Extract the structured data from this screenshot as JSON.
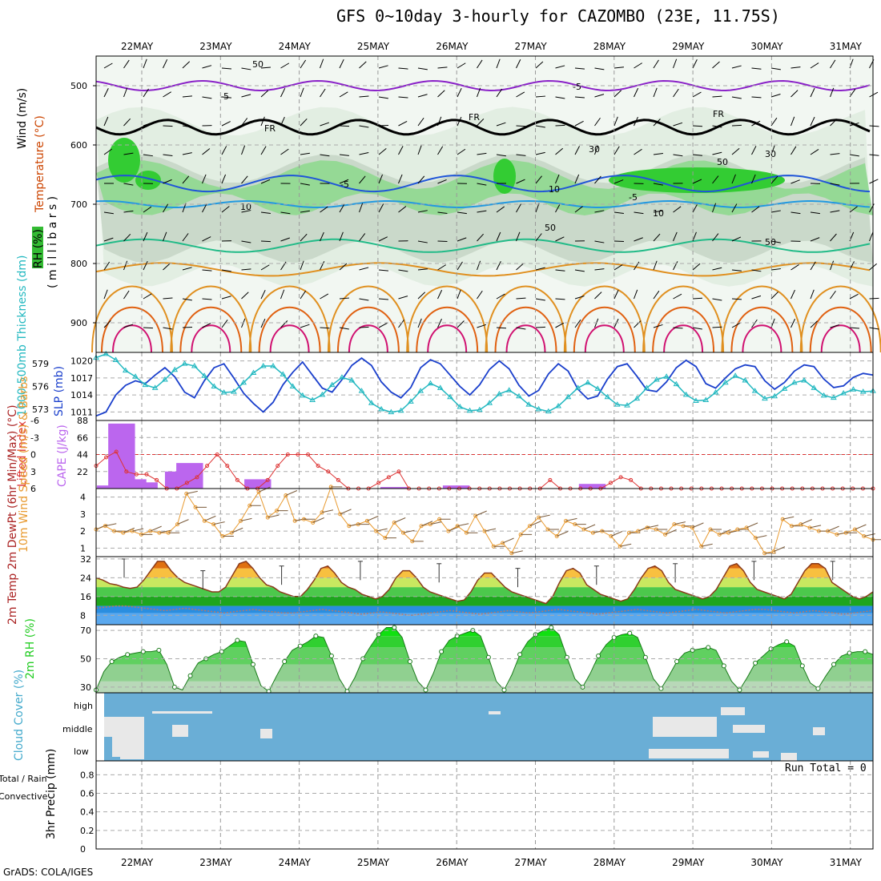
{
  "title": "GFS 0~10day 3-hourly for CAZOMBO (23E, 11.75S)",
  "credit": "GrADS: COLA/IGES",
  "run_total": "Run Total = 0",
  "colors": {
    "rh_green": "#33cc33",
    "temp_purple": "#8a22c8",
    "temp_blue": "#1f55d8",
    "temp_lightblue": "#2299e0",
    "temp_teal": "#22bb88",
    "temp_orange": "#e09020",
    "temp_darkorange": "#e06010",
    "temp_magenta": "#d01070",
    "slp_blue": "#1a3fcc",
    "thick_cyan": "#22b8c0",
    "cape_purple": "#bb66ee",
    "li_red": "#dd3333",
    "wind_orange": "#e89a30",
    "cloud_blue": "#6aaed6",
    "rh2m_green": "#22cc22"
  },
  "chart_data": [
    {
      "type": "heatmap",
      "name": "upper-air cross-section",
      "x_dates": [
        "22MAY",
        "23MAY",
        "24MAY",
        "25MAY",
        "26MAY",
        "27MAY",
        "28MAY",
        "29MAY",
        "30MAY",
        "31MAY"
      ],
      "y_ticks": [
        500,
        600,
        700,
        800,
        900
      ],
      "ylim": [
        950,
        450
      ],
      "contour_labels": [
        "-5",
        "-5",
        "FR",
        "FR",
        "FR",
        "-5",
        "-5",
        "10",
        "10",
        "50",
        "10",
        "30",
        "30",
        "50",
        "50",
        "50"
      ],
      "labels": {
        "wind": "Wind (m/s)",
        "temperature": "Temperature (°C)",
        "rh": "RH (%)",
        "pressure": "( m i l l i b a r s )"
      }
    },
    {
      "type": "line",
      "name": "sea level pressure and thickness",
      "left_axis_label": "1000-500mb Thickness (dm)",
      "left_ticks": [
        573,
        576,
        579
      ],
      "left_lim": [
        571.5,
        580.5
      ],
      "right_axis_label": "SLP (mb)",
      "right_ticks": [
        1011,
        1014,
        1017,
        1020
      ],
      "right_lim": [
        1009.5,
        1021.5
      ],
      "series": [
        {
          "name": "SLP (mb)",
          "axis": "right",
          "values": [
            1010.3,
            1011,
            1014,
            1015.7,
            1016.5,
            1016,
            1017.5,
            1018.8,
            1017.2,
            1014.5,
            1013.5,
            1016.5,
            1018.8,
            1019.5,
            1017,
            1014.3,
            1012.5,
            1011,
            1012.7,
            1015.8,
            1018,
            1019.8,
            1017.5,
            1015.2,
            1014.5,
            1016.7,
            1019.2,
            1020.5,
            1019.2,
            1016.3,
            1014.5,
            1013.5,
            1015.3,
            1018.8,
            1020.2,
            1019.5,
            1017.5,
            1015.5,
            1014,
            1015.8,
            1018.5,
            1020,
            1018.6,
            1015.7,
            1013.8,
            1014.8,
            1017.7,
            1019.5,
            1018.2,
            1015,
            1013.3,
            1013.8,
            1016.8,
            1019,
            1019.5,
            1017.3,
            1014.9,
            1014.6,
            1016.3,
            1018.8,
            1020.1,
            1019,
            1016,
            1015.2,
            1017,
            1018.6,
            1019.3,
            1019,
            1016.5,
            1015,
            1016.2,
            1018.2,
            1019.3,
            1019,
            1016.8,
            1015.3,
            1015.6,
            1017.1,
            1017.8,
            1017.5
          ]
        },
        {
          "name": "1000-500mb Thickness (dm)",
          "axis": "left",
          "values": [
            579.8,
            580.3,
            579.5,
            578.1,
            577.3,
            576.2,
            575.8,
            576.9,
            578.2,
            579,
            578.7,
            577.4,
            576,
            575.2,
            575.3,
            576.5,
            577.8,
            578.7,
            578.7,
            577.6,
            576,
            574.8,
            574.2,
            574.9,
            576.2,
            577.2,
            576.8,
            575.4,
            573.8,
            573,
            572.6,
            572.8,
            574,
            575.4,
            576.4,
            575.8,
            574.6,
            573.3,
            572.8,
            572.9,
            573.8,
            575,
            575.5,
            574.7,
            573.6,
            573,
            572.7,
            573.4,
            574.6,
            575.8,
            576.5,
            575.7,
            574.6,
            573.6,
            573.5,
            574.4,
            575.8,
            576.9,
            577.3,
            576.3,
            574.9,
            574.1,
            574.2,
            575.2,
            576.5,
            577.4,
            576.8,
            575.4,
            574.4,
            574.7,
            575.7,
            576.5,
            576.8,
            575.8,
            574.8,
            574.5,
            575.1,
            575.6,
            575.3,
            575.4
          ]
        }
      ]
    },
    {
      "type": "bar",
      "name": "lifted index and CAPE",
      "left_axis_label": "Lifted Index",
      "left_ticks": [
        6,
        3,
        0,
        -3,
        -6
      ],
      "right_axis_label": "CAPE (J/kg)",
      "right_ticks": [
        22,
        44,
        66,
        88
      ],
      "right_lim": [
        0,
        88
      ],
      "cape_values": [
        4,
        0,
        84,
        0,
        12,
        0,
        8,
        0,
        0,
        0,
        0,
        0,
        22,
        0,
        33,
        0,
        0,
        0,
        0,
        0,
        0,
        0,
        0,
        0,
        0,
        0,
        12,
        0,
        0,
        0,
        0,
        0,
        0,
        0,
        0,
        0,
        0,
        0,
        0,
        0,
        0,
        0,
        0,
        0,
        0,
        0,
        0,
        0,
        0,
        0,
        2,
        0,
        0,
        0,
        0,
        0,
        0,
        0,
        0,
        0,
        0,
        4,
        0,
        0,
        0,
        0,
        0,
        0,
        0,
        0,
        0,
        0,
        0,
        0,
        0,
        0,
        0,
        0,
        0,
        0,
        0,
        0,
        0,
        0,
        0,
        6,
        0,
        0,
        0,
        0,
        0,
        0,
        0,
        0,
        0,
        0,
        0,
        0,
        0,
        0,
        0,
        0,
        0,
        0,
        0,
        0,
        0,
        0,
        0,
        0,
        0,
        0,
        0,
        0,
        0,
        0,
        0,
        0,
        0,
        0,
        0,
        0,
        0,
        0,
        0,
        0,
        0,
        0,
        0,
        0,
        0,
        0,
        0,
        0,
        0,
        0,
        0
      ],
      "li_values": [
        2,
        0.5,
        -0.5,
        3,
        3.5,
        3.5,
        4.5,
        6,
        6,
        5,
        4,
        2,
        0,
        2,
        4.5,
        6,
        6,
        4.5,
        2,
        0,
        0,
        0,
        2,
        3,
        4.5,
        6,
        6,
        6,
        5,
        4,
        3,
        6,
        6,
        6,
        6,
        6,
        6,
        6,
        6,
        6,
        6,
        6,
        6,
        6,
        6,
        4.5,
        6,
        6,
        6,
        6,
        6,
        5,
        4,
        4.5,
        6,
        6,
        6,
        6,
        6,
        6,
        6,
        6,
        6,
        6,
        6,
        6,
        6,
        6,
        6,
        6,
        6,
        6,
        6,
        6,
        6,
        6,
        6,
        6
      ]
    },
    {
      "type": "line",
      "name": "10m wind speed",
      "axis_label": "10m Wind Speed (m/s) & Barbs",
      "yticks": [
        1,
        2,
        3,
        4
      ],
      "ylim": [
        0.5,
        4.5
      ],
      "values": [
        2.1,
        2.3,
        2,
        1.9,
        2,
        1.8,
        2,
        1.9,
        1.9,
        2.4,
        4.2,
        3.4,
        2.6,
        2.4,
        1.7,
        1.9,
        2.6,
        3.5,
        4.3,
        2.8,
        3.2,
        4.1,
        2.6,
        2.7,
        2.5,
        3.1,
        4.6,
        3,
        2.3,
        2.4,
        2.6,
        2,
        1.6,
        2.5,
        1.9,
        1.4,
        2.3,
        2.4,
        2.7,
        2,
        2.3,
        1.9,
        2.9,
        2,
        1.1,
        1.3,
        0.7,
        1.8,
        2.3,
        2.8,
        2.1,
        1.7,
        2.6,
        2.4,
        2.1,
        1.9,
        2,
        1.7,
        1.1,
        1.9,
        2,
        2.2,
        2.1,
        1.8,
        2.4,
        2.3,
        2.2,
        1.1,
        2.1,
        1.8,
        1.9,
        2.1,
        2.2,
        1.6,
        0.7,
        0.8,
        2.7,
        2.3,
        2.4,
        2.2,
        2,
        2,
        1.8,
        1.9,
        2.1,
        1.7,
        1.5
      ]
    },
    {
      "type": "area",
      "name": "2m temperature and dewpoint",
      "axis_label": "2m Temp 2m DewPt (6hr Min/Max) (°C)",
      "yticks": [
        8,
        16,
        24,
        32
      ],
      "ylim": [
        4,
        33
      ],
      "temp": [
        24,
        23,
        21.5,
        21,
        20,
        19.5,
        20,
        23,
        27,
        31,
        31,
        27,
        24,
        22,
        21,
        20,
        19,
        18,
        18,
        20,
        25,
        30,
        31,
        28,
        24,
        21,
        20,
        18,
        17,
        16,
        16,
        19,
        23,
        28,
        29,
        26,
        22,
        20,
        19,
        17,
        16,
        15,
        16,
        19,
        24,
        27,
        27,
        24,
        20,
        18,
        17,
        16,
        15,
        14,
        14.5,
        18,
        23,
        26,
        26,
        23,
        20,
        18,
        17,
        16,
        15,
        14,
        13,
        16,
        22,
        27,
        28,
        26,
        21,
        19,
        17,
        16,
        15,
        14,
        15,
        19,
        24,
        28,
        29,
        27,
        22,
        19,
        18,
        17,
        16,
        15,
        16,
        19,
        24,
        29,
        30,
        27,
        22,
        19,
        18,
        17,
        16,
        15,
        17,
        22,
        27,
        30,
        30,
        28,
        22,
        20,
        18,
        16,
        15,
        16,
        18
      ],
      "dewpt": [
        11,
        11.5,
        12,
        12,
        11.5,
        11,
        10.5,
        10,
        10.5,
        11,
        10.5,
        10,
        9.5,
        9,
        9.5,
        10,
        10.5,
        10,
        9.5,
        9,
        9,
        9.5,
        10,
        10.5,
        10,
        9.5,
        9,
        8.5,
        9,
        9.5,
        9,
        8.5,
        8,
        8.5,
        9,
        9.5,
        10,
        9.5,
        9,
        8.5,
        9,
        9.5,
        10,
        9.5,
        9,
        9.5,
        10,
        10.5,
        10,
        9.5,
        9,
        8.5,
        9,
        9.5,
        10,
        10.5,
        10,
        9.5,
        9,
        9.5,
        10,
        10.5,
        10,
        9.5,
        9,
        9.5,
        10,
        10.5,
        10.5,
        10,
        9.5,
        9,
        9.5,
        10,
        9.5,
        9,
        8.5,
        9,
        9.5,
        10
      ],
      "minmax_ticks": [
        32,
        27,
        29,
        31,
        30,
        28,
        29,
        30,
        31,
        31
      ]
    },
    {
      "type": "area",
      "name": "2m relative humidity",
      "axis_label": "2m RH (%)",
      "yticks": [
        30,
        50,
        70
      ],
      "ylim": [
        26,
        74
      ],
      "values": [
        28,
        41,
        48,
        51,
        53,
        54,
        55,
        55,
        56,
        46,
        30,
        28,
        38,
        47,
        50,
        53,
        55,
        59,
        63,
        62,
        46,
        31,
        27,
        38,
        48,
        56,
        59,
        62,
        66,
        65,
        52,
        36,
        27,
        37,
        50,
        59,
        67,
        72,
        72,
        65,
        48,
        34,
        28,
        40,
        55,
        63,
        66,
        68,
        70,
        66,
        51,
        34,
        28,
        39,
        53,
        62,
        67,
        70,
        72,
        67,
        51,
        36,
        30,
        40,
        52,
        60,
        65,
        67,
        68,
        65,
        51,
        36,
        29,
        38,
        48,
        54,
        56,
        57,
        58,
        56,
        45,
        34,
        28,
        37,
        47,
        52,
        57,
        60,
        62,
        59,
        45,
        33,
        29,
        38,
        46,
        52,
        54,
        55,
        55,
        53
      ]
    },
    {
      "type": "heatmap",
      "name": "cloud cover",
      "axis_label": "Cloud Cover (%)",
      "ytick_labels": [
        "high",
        "middle",
        "low"
      ]
    },
    {
      "type": "bar",
      "name": "3hr precipitation",
      "axis_label": "3hr Precip (mm)",
      "legend_total_rain": "Total / Rain",
      "legend_convective": "Convective",
      "yticks": [
        0,
        0.2,
        0.4,
        0.6,
        0.8
      ],
      "ylim": [
        0,
        0.95
      ],
      "values": []
    }
  ]
}
